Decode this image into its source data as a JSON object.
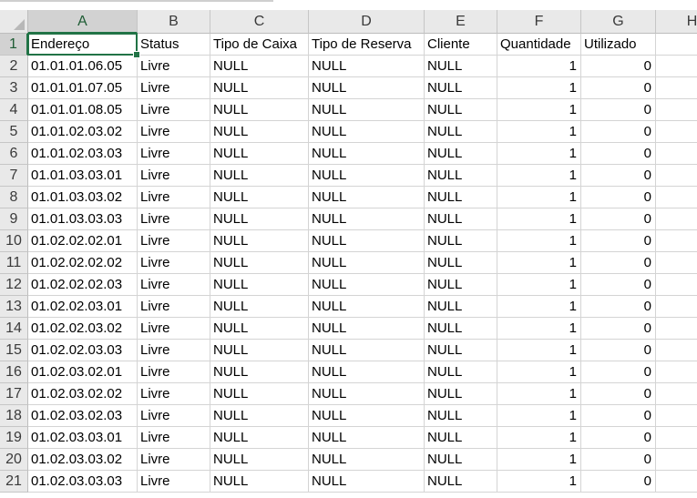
{
  "sheet": {
    "columns": [
      "A",
      "B",
      "C",
      "D",
      "E",
      "F",
      "G",
      "H"
    ],
    "selected_column": "A",
    "selected_row": "1",
    "headers": [
      "Endereço",
      "Status",
      "Tipo de Caixa",
      "Tipo de Reserva",
      "Cliente",
      "Quantidade",
      "Utilizado"
    ],
    "rows": [
      [
        "01.01.01.06.05",
        "Livre",
        "NULL",
        "NULL",
        "NULL",
        "1",
        "0"
      ],
      [
        "01.01.01.07.05",
        "Livre",
        "NULL",
        "NULL",
        "NULL",
        "1",
        "0"
      ],
      [
        "01.01.01.08.05",
        "Livre",
        "NULL",
        "NULL",
        "NULL",
        "1",
        "0"
      ],
      [
        "01.01.02.03.02",
        "Livre",
        "NULL",
        "NULL",
        "NULL",
        "1",
        "0"
      ],
      [
        "01.01.02.03.03",
        "Livre",
        "NULL",
        "NULL",
        "NULL",
        "1",
        "0"
      ],
      [
        "01.01.03.03.01",
        "Livre",
        "NULL",
        "NULL",
        "NULL",
        "1",
        "0"
      ],
      [
        "01.01.03.03.02",
        "Livre",
        "NULL",
        "NULL",
        "NULL",
        "1",
        "0"
      ],
      [
        "01.01.03.03.03",
        "Livre",
        "NULL",
        "NULL",
        "NULL",
        "1",
        "0"
      ],
      [
        "01.02.02.02.01",
        "Livre",
        "NULL",
        "NULL",
        "NULL",
        "1",
        "0"
      ],
      [
        "01.02.02.02.02",
        "Livre",
        "NULL",
        "NULL",
        "NULL",
        "1",
        "0"
      ],
      [
        "01.02.02.02.03",
        "Livre",
        "NULL",
        "NULL",
        "NULL",
        "1",
        "0"
      ],
      [
        "01.02.02.03.01",
        "Livre",
        "NULL",
        "NULL",
        "NULL",
        "1",
        "0"
      ],
      [
        "01.02.02.03.02",
        "Livre",
        "NULL",
        "NULL",
        "NULL",
        "1",
        "0"
      ],
      [
        "01.02.02.03.03",
        "Livre",
        "NULL",
        "NULL",
        "NULL",
        "1",
        "0"
      ],
      [
        "01.02.03.02.01",
        "Livre",
        "NULL",
        "NULL",
        "NULL",
        "1",
        "0"
      ],
      [
        "01.02.03.02.02",
        "Livre",
        "NULL",
        "NULL",
        "NULL",
        "1",
        "0"
      ],
      [
        "01.02.03.02.03",
        "Livre",
        "NULL",
        "NULL",
        "NULL",
        "1",
        "0"
      ],
      [
        "01.02.03.03.01",
        "Livre",
        "NULL",
        "NULL",
        "NULL",
        "1",
        "0"
      ],
      [
        "01.02.03.03.02",
        "Livre",
        "NULL",
        "NULL",
        "NULL",
        "1",
        "0"
      ],
      [
        "01.02.03.03.03",
        "Livre",
        "NULL",
        "NULL",
        "NULL",
        "1",
        "0"
      ]
    ],
    "numeric_columns": [
      5,
      6
    ],
    "colors": {
      "accent": "#217346",
      "header_bg": "#e9e9e9",
      "header_selected_bg": "#d2d2d2",
      "gridline": "#d4d4d4"
    }
  }
}
